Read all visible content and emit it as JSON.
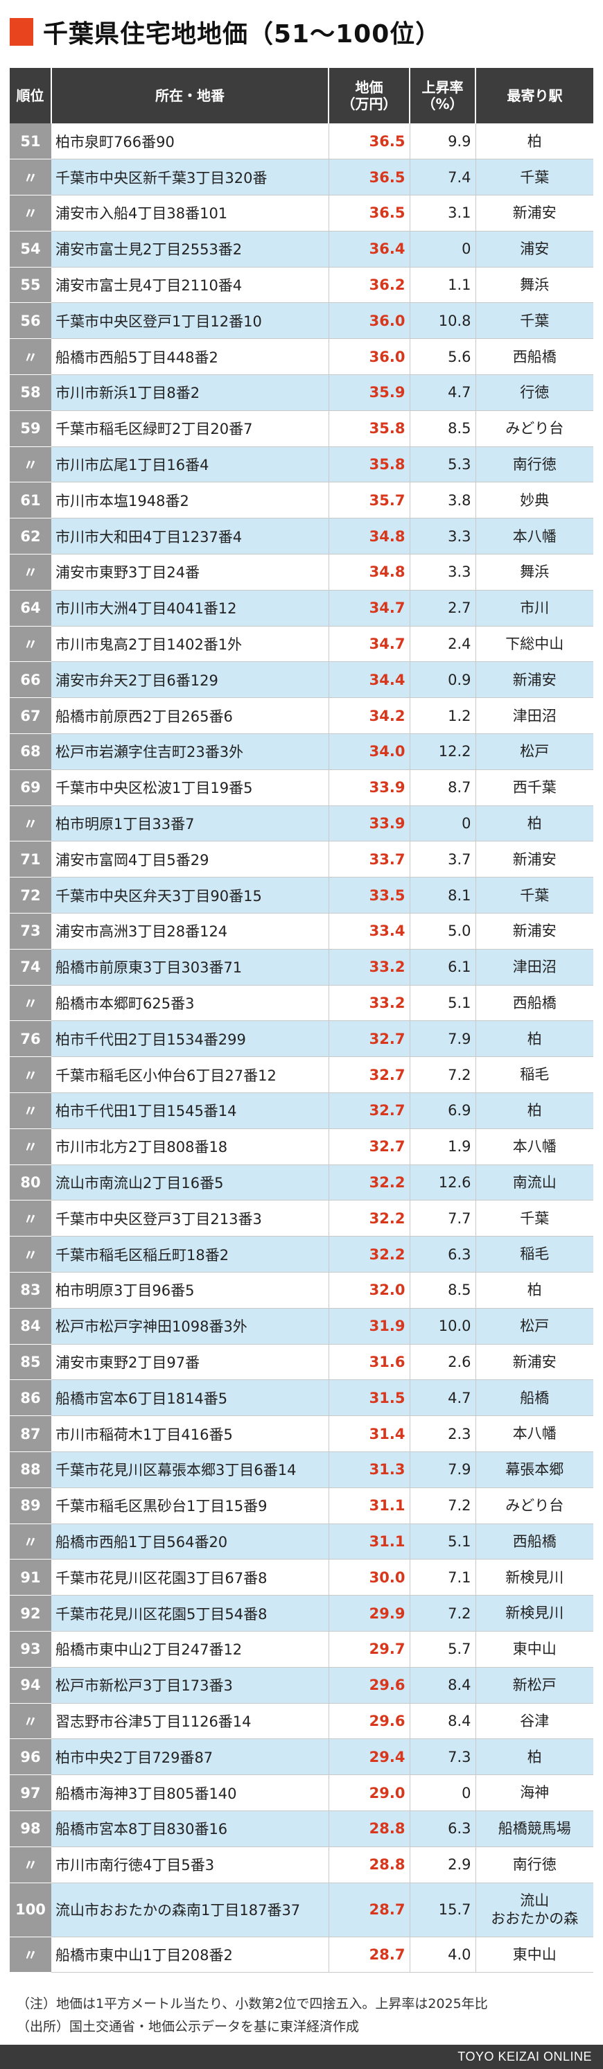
{
  "title": "千葉県住宅地地価（51〜100位）",
  "colors": {
    "accent": "#e8451e",
    "header_bg": "#3d3d3d",
    "rank_bg": "#9b9b9b",
    "alt_row": "#cfe8f5",
    "price_text": "#d9371c"
  },
  "headers": {
    "rank": "順位",
    "address": "所在・地番",
    "price_line1": "地価",
    "price_line2": "（万円）",
    "rate_line1": "上昇率",
    "rate_line2": "（%）",
    "station": "最寄り駅"
  },
  "rows": [
    {
      "rank": "51",
      "address": "柏市泉町766番90",
      "price": "36.5",
      "rate": "9.9",
      "station": "柏"
    },
    {
      "rank": "〃",
      "address": "千葉市中央区新千葉3丁目320番",
      "price": "36.5",
      "rate": "7.4",
      "station": "千葉"
    },
    {
      "rank": "〃",
      "address": "浦安市入船4丁目38番101",
      "price": "36.5",
      "rate": "3.1",
      "station": "新浦安"
    },
    {
      "rank": "54",
      "address": "浦安市富士見2丁目2553番2",
      "price": "36.4",
      "rate": "0",
      "station": "浦安"
    },
    {
      "rank": "55",
      "address": "浦安市富士見4丁目2110番4",
      "price": "36.2",
      "rate": "1.1",
      "station": "舞浜"
    },
    {
      "rank": "56",
      "address": "千葉市中央区登戸1丁目12番10",
      "price": "36.0",
      "rate": "10.8",
      "station": "千葉"
    },
    {
      "rank": "〃",
      "address": "船橋市西船5丁目448番2",
      "price": "36.0",
      "rate": "5.6",
      "station": "西船橋"
    },
    {
      "rank": "58",
      "address": "市川市新浜1丁目8番2",
      "price": "35.9",
      "rate": "4.7",
      "station": "行徳"
    },
    {
      "rank": "59",
      "address": "千葉市稲毛区緑町2丁目20番7",
      "price": "35.8",
      "rate": "8.5",
      "station": "みどり台"
    },
    {
      "rank": "〃",
      "address": "市川市広尾1丁目16番4",
      "price": "35.8",
      "rate": "5.3",
      "station": "南行徳"
    },
    {
      "rank": "61",
      "address": "市川市本塩1948番2",
      "price": "35.7",
      "rate": "3.8",
      "station": "妙典"
    },
    {
      "rank": "62",
      "address": "市川市大和田4丁目1237番4",
      "price": "34.8",
      "rate": "3.3",
      "station": "本八幡"
    },
    {
      "rank": "〃",
      "address": "浦安市東野3丁目24番",
      "price": "34.8",
      "rate": "3.3",
      "station": "舞浜"
    },
    {
      "rank": "64",
      "address": "市川市大洲4丁目4041番12",
      "price": "34.7",
      "rate": "2.7",
      "station": "市川"
    },
    {
      "rank": "〃",
      "address": "市川市鬼高2丁目1402番1外",
      "price": "34.7",
      "rate": "2.4",
      "station": "下総中山"
    },
    {
      "rank": "66",
      "address": "浦安市弁天2丁目6番129",
      "price": "34.4",
      "rate": "0.9",
      "station": "新浦安"
    },
    {
      "rank": "67",
      "address": "船橋市前原西2丁目265番6",
      "price": "34.2",
      "rate": "1.2",
      "station": "津田沼"
    },
    {
      "rank": "68",
      "address": "松戸市岩瀬字住吉町23番3外",
      "price": "34.0",
      "rate": "12.2",
      "station": "松戸"
    },
    {
      "rank": "69",
      "address": "千葉市中央区松波1丁目19番5",
      "price": "33.9",
      "rate": "8.7",
      "station": "西千葉"
    },
    {
      "rank": "〃",
      "address": "柏市明原1丁目33番7",
      "price": "33.9",
      "rate": "0",
      "station": "柏"
    },
    {
      "rank": "71",
      "address": "浦安市富岡4丁目5番29",
      "price": "33.7",
      "rate": "3.7",
      "station": "新浦安"
    },
    {
      "rank": "72",
      "address": "千葉市中央区弁天3丁目90番15",
      "price": "33.5",
      "rate": "8.1",
      "station": "千葉"
    },
    {
      "rank": "73",
      "address": "浦安市高洲3丁目28番124",
      "price": "33.4",
      "rate": "5.0",
      "station": "新浦安"
    },
    {
      "rank": "74",
      "address": "船橋市前原東3丁目303番71",
      "price": "33.2",
      "rate": "6.1",
      "station": "津田沼"
    },
    {
      "rank": "〃",
      "address": "船橋市本郷町625番3",
      "price": "33.2",
      "rate": "5.1",
      "station": "西船橋"
    },
    {
      "rank": "76",
      "address": "柏市千代田2丁目1534番299",
      "price": "32.7",
      "rate": "7.9",
      "station": "柏"
    },
    {
      "rank": "〃",
      "address": "千葉市稲毛区小仲台6丁目27番12",
      "price": "32.7",
      "rate": "7.2",
      "station": "稲毛"
    },
    {
      "rank": "〃",
      "address": "柏市千代田1丁目1545番14",
      "price": "32.7",
      "rate": "6.9",
      "station": "柏"
    },
    {
      "rank": "〃",
      "address": "市川市北方2丁目808番18",
      "price": "32.7",
      "rate": "1.9",
      "station": "本八幡"
    },
    {
      "rank": "80",
      "address": "流山市南流山2丁目16番5",
      "price": "32.2",
      "rate": "12.6",
      "station": "南流山"
    },
    {
      "rank": "〃",
      "address": "千葉市中央区登戸3丁目213番3",
      "price": "32.2",
      "rate": "7.7",
      "station": "千葉"
    },
    {
      "rank": "〃",
      "address": "千葉市稲毛区稲丘町18番2",
      "price": "32.2",
      "rate": "6.3",
      "station": "稲毛"
    },
    {
      "rank": "83",
      "address": "柏市明原3丁目96番5",
      "price": "32.0",
      "rate": "8.5",
      "station": "柏"
    },
    {
      "rank": "84",
      "address": "松戸市松戸字神田1098番3外",
      "price": "31.9",
      "rate": "10.0",
      "station": "松戸"
    },
    {
      "rank": "85",
      "address": "浦安市東野2丁目97番",
      "price": "31.6",
      "rate": "2.6",
      "station": "新浦安"
    },
    {
      "rank": "86",
      "address": "船橋市宮本6丁目1814番5",
      "price": "31.5",
      "rate": "4.7",
      "station": "船橋"
    },
    {
      "rank": "87",
      "address": "市川市稲荷木1丁目416番5",
      "price": "31.4",
      "rate": "2.3",
      "station": "本八幡"
    },
    {
      "rank": "88",
      "address": "千葉市花見川区幕張本郷3丁目6番14",
      "price": "31.3",
      "rate": "7.9",
      "station": "幕張本郷"
    },
    {
      "rank": "89",
      "address": "千葉市稲毛区黒砂台1丁目15番9",
      "price": "31.1",
      "rate": "7.2",
      "station": "みどり台"
    },
    {
      "rank": "〃",
      "address": "船橋市西船1丁目564番20",
      "price": "31.1",
      "rate": "5.1",
      "station": "西船橋"
    },
    {
      "rank": "91",
      "address": "千葉市花見川区花園3丁目67番8",
      "price": "30.0",
      "rate": "7.1",
      "station": "新検見川"
    },
    {
      "rank": "92",
      "address": "千葉市花見川区花園5丁目54番8",
      "price": "29.9",
      "rate": "7.2",
      "station": "新検見川"
    },
    {
      "rank": "93",
      "address": "船橋市東中山2丁目247番12",
      "price": "29.7",
      "rate": "5.7",
      "station": "東中山"
    },
    {
      "rank": "94",
      "address": "松戸市新松戸3丁目173番3",
      "price": "29.6",
      "rate": "8.4",
      "station": "新松戸"
    },
    {
      "rank": "〃",
      "address": "習志野市谷津5丁目1126番14",
      "price": "29.6",
      "rate": "8.4",
      "station": "谷津"
    },
    {
      "rank": "96",
      "address": "柏市中央2丁目729番87",
      "price": "29.4",
      "rate": "7.3",
      "station": "柏"
    },
    {
      "rank": "97",
      "address": "船橋市海神3丁目805番140",
      "price": "29.0",
      "rate": "0",
      "station": "海神"
    },
    {
      "rank": "98",
      "address": "船橋市宮本8丁目830番16",
      "price": "28.8",
      "rate": "6.3",
      "station": "船橋競馬場"
    },
    {
      "rank": "〃",
      "address": "市川市南行徳4丁目5番3",
      "price": "28.8",
      "rate": "2.9",
      "station": "南行徳"
    },
    {
      "rank": "100",
      "address": "流山市おおたかの森南1丁目187番37",
      "price": "28.7",
      "rate": "15.7",
      "station": "流山\nおおたかの森"
    },
    {
      "rank": "〃",
      "address": "船橋市東中山1丁目208番2",
      "price": "28.7",
      "rate": "4.0",
      "station": "東中山"
    }
  ],
  "notes": {
    "line1": "（注）地価は1平方メートル当たり、小数第2位で四捨五入。上昇率は2025年比",
    "line2": "（出所）国土交通省・地価公示データを基に東洋経済作成"
  },
  "footer": "TOYO KEIZAI ONLINE"
}
